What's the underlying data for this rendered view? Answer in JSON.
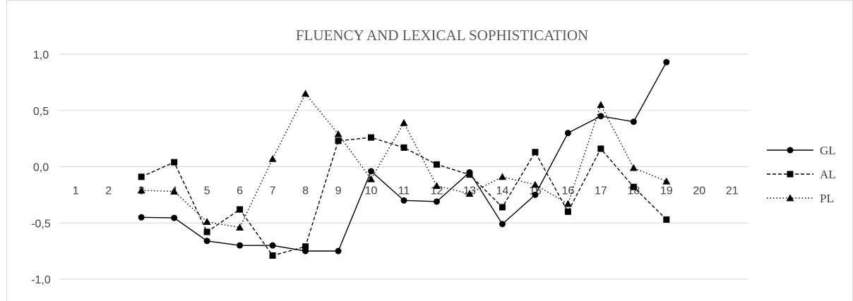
{
  "chart_data": {
    "type": "line",
    "title": "FLUENCY AND LEXICAL SOPHISTICATION",
    "xlabel": "",
    "ylabel": "",
    "categories": [
      "1",
      "2",
      "3",
      "4",
      "5",
      "6",
      "7",
      "8",
      "9",
      "10",
      "11",
      "12",
      "13",
      "14",
      "15",
      "16",
      "17",
      "18",
      "19",
      "20",
      "21"
    ],
    "ylim": [
      -1.0,
      1.0
    ],
    "yticks": [
      1.0,
      0.5,
      0.0,
      -0.5,
      -1.0
    ],
    "ytick_labels": [
      "1,0",
      "0,5",
      "0,0",
      "-0,5",
      "-1,0"
    ],
    "grid": true,
    "legend": "right",
    "series": [
      {
        "name": "GL",
        "marker": "circle",
        "dash": "solid",
        "values": [
          null,
          null,
          -0.45,
          -0.455,
          -0.66,
          -0.7,
          -0.7,
          -0.75,
          -0.75,
          -0.04,
          -0.3,
          -0.31,
          -0.05,
          -0.51,
          -0.25,
          0.3,
          0.45,
          0.4,
          0.93,
          null,
          null
        ]
      },
      {
        "name": "AL",
        "marker": "square",
        "dash": "dashed",
        "values": [
          null,
          null,
          -0.09,
          0.04,
          -0.58,
          -0.38,
          -0.79,
          -0.71,
          0.23,
          0.26,
          0.17,
          0.02,
          -0.07,
          -0.36,
          0.13,
          -0.4,
          0.16,
          -0.18,
          -0.47,
          null,
          null
        ]
      },
      {
        "name": "PL",
        "marker": "triangle",
        "dash": "dotted",
        "values": [
          null,
          null,
          -0.21,
          -0.22,
          -0.49,
          -0.54,
          0.07,
          0.65,
          0.29,
          -0.11,
          0.39,
          -0.17,
          -0.24,
          -0.09,
          -0.16,
          -0.33,
          0.55,
          -0.01,
          -0.13,
          null,
          null
        ]
      }
    ]
  }
}
